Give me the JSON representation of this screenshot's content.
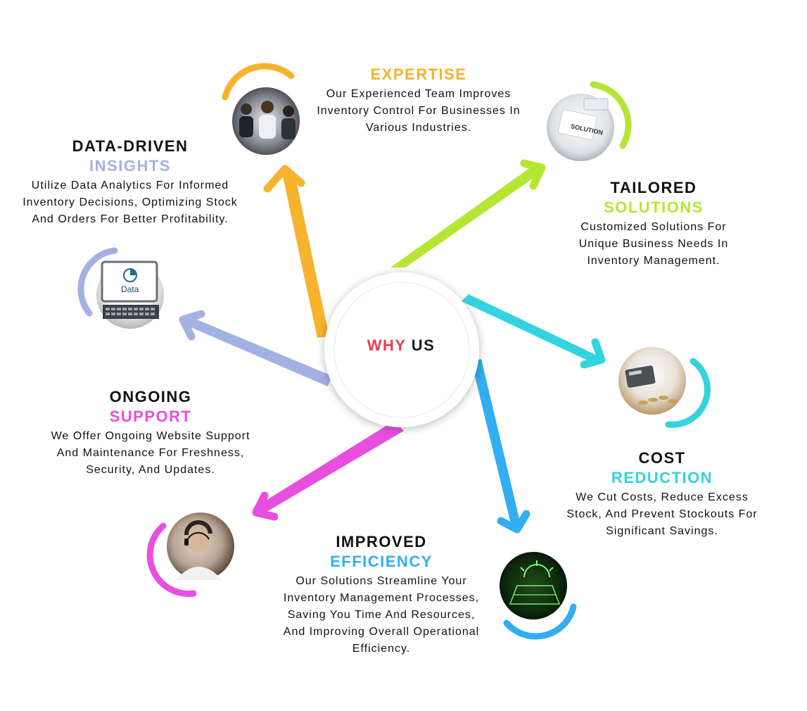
{
  "center": {
    "word1": "WHY",
    "word2": "US",
    "word1_color": "#e8404f",
    "word2_color": "#1a1a1a"
  },
  "items": {
    "expertise": {
      "title1": "",
      "title2": "EXPERTISE",
      "desc": "Our Experienced Team Improves Inventory Control For Businesses In Various Industries.",
      "color": "#f7b22e",
      "icon": "business-team-photo-icon"
    },
    "tailored": {
      "title1": "TAILORED",
      "title2": "SOLUTIONS",
      "desc": "Customized Solutions For Unique Business Needs In Inventory Management.",
      "color": "#b5e634",
      "icon": "solution-document-photo-icon"
    },
    "cost": {
      "title1": "COST",
      "title2": "REDUCTION",
      "desc": "We Cut Costs, Reduce Excess Stock, And Prevent Stockouts For Significant Savings.",
      "color": "#33d3e0",
      "icon": "calculator-coins-photo-icon"
    },
    "efficiency": {
      "title1": "IMPROVED",
      "title2": "EFFICIENCY",
      "desc": "Our Solutions Streamline Your Inventory Management Processes, Saving You Time And Resources, And Improving Overall Operational Efficiency.",
      "color": "#33aef2",
      "icon": "solar-panel-photo-icon"
    },
    "support": {
      "title1": "ONGOING",
      "title2": "SUPPORT",
      "desc": "We Offer Ongoing Website Support And Maintenance For Freshness, Security, And Updates.",
      "color": "#e84ee0",
      "icon": "support-agent-headset-photo-icon"
    },
    "insights": {
      "title1": "DATA-DRIVEN",
      "title2": "INSIGHTS",
      "desc": "Utilize Data Analytics For Informed Inventory Decisions, Optimizing Stock And Orders For Better Profitability.",
      "color": "#a3b2e2",
      "icon": "laptop-data-photo-icon",
      "photo_text": "Data"
    }
  }
}
